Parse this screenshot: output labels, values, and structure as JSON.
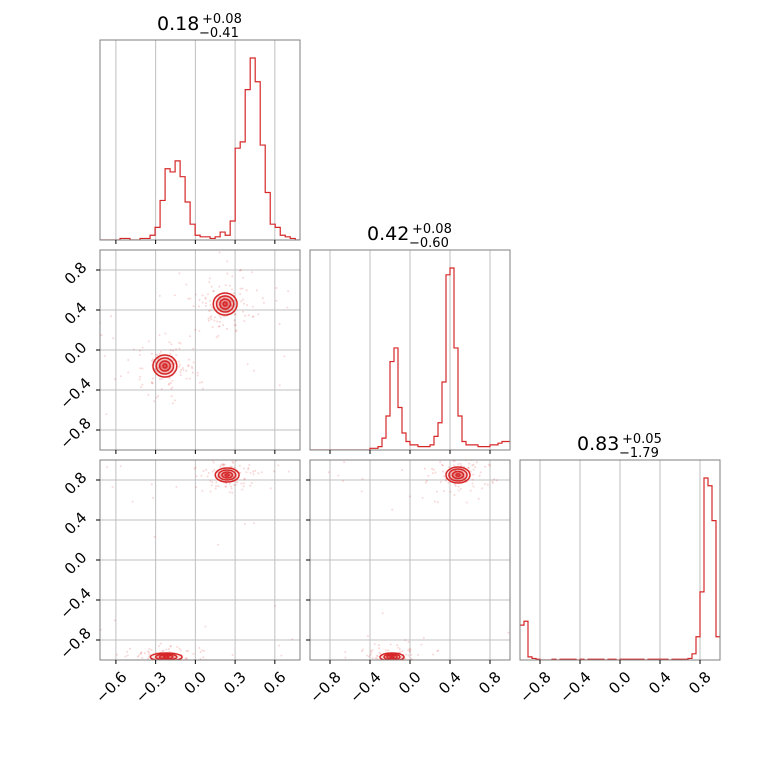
{
  "colors": {
    "line": "#d62728",
    "fill": "#d62728",
    "grid": "#bfbfbf",
    "frame": "#7f7f7f"
  },
  "chart_data": {
    "type": "corner",
    "grid": true,
    "legend": "none",
    "titles": [
      {
        "median": "0.18",
        "plus": "+0.08",
        "minus": "−0.41"
      },
      {
        "median": "0.42",
        "plus": "+0.08",
        "minus": "−0.60"
      },
      {
        "median": "0.83",
        "plus": "+0.05",
        "minus": "−1.79"
      }
    ],
    "params": [
      {
        "range": [
          -0.72,
          0.79
        ],
        "ticks": [
          -0.6,
          -0.3,
          0.0,
          0.3,
          0.6
        ],
        "tick_labels": [
          "−0.6",
          "−0.3",
          "0.0",
          "0.3",
          "0.6"
        ]
      },
      {
        "range": [
          -1.0,
          1.0
        ],
        "ticks": [
          -0.8,
          -0.4,
          0.0,
          0.4,
          0.8
        ],
        "tick_labels": [
          "−0.8",
          "−0.4",
          "0.0",
          "0.4",
          "0.8"
        ]
      },
      {
        "range": [
          -1.0,
          1.0
        ],
        "ticks": [
          -0.8,
          -0.4,
          0.0,
          0.4,
          0.8
        ],
        "tick_labels": [
          "−0.8",
          "−0.4",
          "0.0",
          "0.4",
          "0.8"
        ]
      }
    ],
    "histograms": [
      {
        "param": 0,
        "bin_edges_start": -0.72,
        "bin_width": 0.0378,
        "counts": [
          0,
          0,
          0,
          0,
          1,
          1,
          0,
          0,
          1,
          1,
          3,
          8,
          25,
          45,
          43,
          50,
          40,
          24,
          10,
          3,
          2,
          2,
          1,
          2,
          5,
          3,
          12,
          58,
          62,
          95,
          115,
          100,
          60,
          30,
          10,
          8,
          3,
          2,
          1,
          0,
          1,
          0,
          0,
          0,
          0,
          0,
          0,
          0,
          0,
          1
        ]
      },
      {
        "param": 1,
        "bin_edges_start": -1.0,
        "bin_width": 0.04,
        "counts": [
          0,
          0,
          0,
          0,
          0,
          0,
          0,
          0,
          0,
          0,
          0,
          0,
          0,
          0,
          0,
          1,
          1,
          2,
          7,
          20,
          52,
          60,
          25,
          10,
          5,
          3,
          3,
          2,
          2,
          2,
          3,
          8,
          16,
          40,
          103,
          107,
          60,
          20,
          5,
          3,
          3,
          3,
          2,
          2,
          2,
          3,
          3,
          4,
          5,
          5
        ]
      },
      {
        "param": 2,
        "bin_edges_start": -1.0,
        "bin_width": 0.04,
        "counts": [
          45,
          50,
          4,
          2,
          1,
          0,
          0,
          0,
          1,
          0,
          1,
          1,
          1,
          1,
          0,
          1,
          0,
          1,
          1,
          1,
          1,
          0,
          1,
          1,
          0,
          1,
          1,
          1,
          1,
          1,
          1,
          0,
          1,
          1,
          1,
          1,
          1,
          0,
          1,
          1,
          1,
          1,
          2,
          8,
          30,
          88,
          235,
          225,
          180,
          30
        ]
      }
    ],
    "contours": [
      {
        "x_param": 0,
        "y_param": 1,
        "clusters": [
          {
            "cx": 0.225,
            "cy": 0.46,
            "rx": [
              0.09,
              0.065,
              0.04,
              0.015
            ],
            "ry": [
              0.11,
              0.08,
              0.05,
              0.02
            ]
          },
          {
            "cx": -0.23,
            "cy": -0.16,
            "rx": [
              0.09,
              0.065,
              0.04,
              0.015
            ],
            "ry": [
              0.11,
              0.08,
              0.05,
              0.02
            ]
          }
        ]
      },
      {
        "x_param": 0,
        "y_param": 2,
        "clusters": [
          {
            "cx": 0.24,
            "cy": 0.85,
            "rx": [
              0.09,
              0.065,
              0.04,
              0.015
            ],
            "ry": [
              0.07,
              0.05,
              0.03,
              0.012
            ]
          },
          {
            "cx": -0.22,
            "cy": -0.97,
            "rx": [
              0.12,
              0.08,
              0.05,
              0.02
            ],
            "ry": [
              0.04,
              0.03,
              0.02,
              0.01
            ]
          }
        ]
      },
      {
        "x_param": 1,
        "y_param": 2,
        "clusters": [
          {
            "cx": 0.48,
            "cy": 0.85,
            "rx": [
              0.12,
              0.09,
              0.055,
              0.02
            ],
            "ry": [
              0.08,
              0.06,
              0.035,
              0.012
            ]
          },
          {
            "cx": -0.18,
            "cy": -0.97,
            "rx": [
              0.12,
              0.08,
              0.05,
              0.02
            ],
            "ry": [
              0.04,
              0.03,
              0.02,
              0.01
            ]
          }
        ]
      }
    ]
  }
}
